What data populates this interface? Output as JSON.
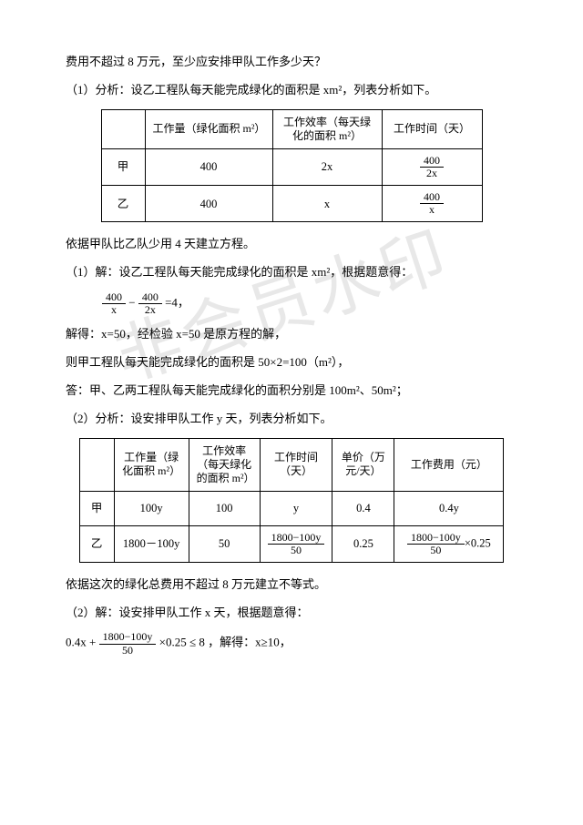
{
  "watermark": "非会员水印",
  "intro_line1": "费用不超过 8 万元，至少应安排甲队工作多少天？",
  "analysis1_label": "（1）分析：设乙工程队每天能完成绿化的面积是 xm²，列表分析如下。",
  "table1": {
    "headers": [
      "",
      "工作量（绿化面积 m²）",
      "工作效率（每天绿化的面积 m²）",
      "工作时间（天）"
    ],
    "rows": [
      {
        "label": "甲",
        "amount": "400",
        "rate": "2x",
        "time_num": "400",
        "time_den": "2x"
      },
      {
        "label": "乙",
        "amount": "400",
        "rate": "x",
        "time_num": "400",
        "time_den": "x"
      }
    ]
  },
  "basis1": "依据甲队比乙队少用 4 天建立方程。",
  "solve1_label": "（1）解：设乙工程队每天能完成绿化的面积是 xm²，根据题意得：",
  "equation1": {
    "f1_num": "400",
    "f1_den": "x",
    "minus": " − ",
    "f2_num": "400",
    "f2_den": "2x",
    "tail": " =4，"
  },
  "solve1_line2": "解得：x=50，经检验 x=50 是原方程的解，",
  "solve1_line3": "则甲工程队每天能完成绿化的面积是 50×2=100（m²），",
  "solve1_answer": "答：甲、乙两工程队每天能完成绿化的面积分别是 100m²、50m²；",
  "analysis2_label": "（2）分析：设安排甲队工作 y 天，列表分析如下。",
  "table2": {
    "headers": [
      "",
      "工作量（绿化面积 m²）",
      "工作效率（每天绿化的面积 m²）",
      "工作时间（天）",
      "单价（万元/天）",
      "工作费用（元）"
    ],
    "rowA": {
      "label": "甲",
      "amount": "100y",
      "rate": "100",
      "time": "y",
      "price": "0.4",
      "cost": "0.4y"
    },
    "rowB": {
      "label": "乙",
      "amount": "1800－100y",
      "rate": "50",
      "time_num": "1800−100y",
      "time_den": "50",
      "price": "0.25",
      "cost_num": "1800−100y",
      "cost_den": "50",
      "cost_tail": "×0.25"
    }
  },
  "basis2": "依据这次的绿化总费用不超过 8 万元建立不等式。",
  "solve2_label": "（2）解：设安排甲队工作 x 天，根据题意得：",
  "equation2": {
    "lead": "0.4x + ",
    "num": "1800−100y",
    "den": "50",
    "tail": " ×0.25 ≤ 8 ，解得：x≥10，"
  }
}
